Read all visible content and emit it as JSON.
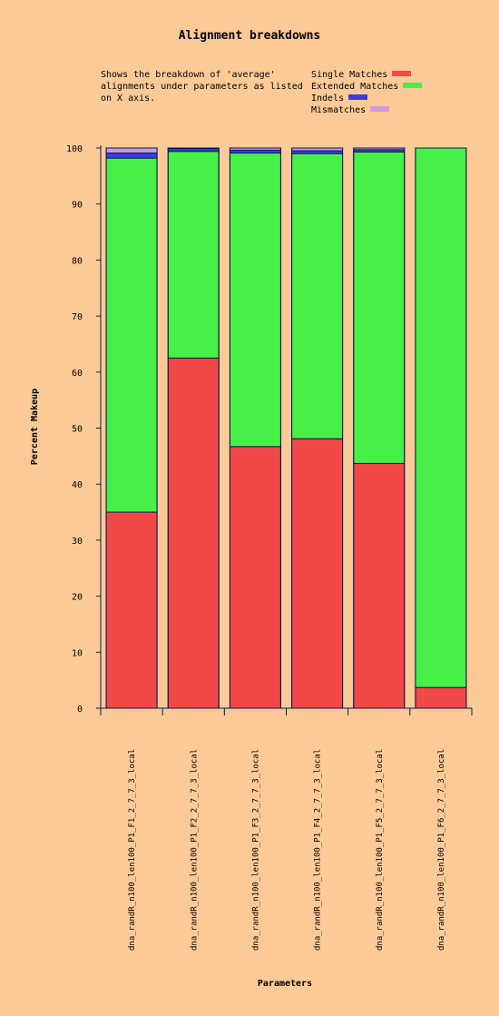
{
  "chart_data": {
    "type": "bar",
    "stacked": true,
    "title": "Alignment breakdowns",
    "description_lines": [
      "Shows the breakdown of 'average'",
      "alignments under parameters as listed",
      "on X axis."
    ],
    "xlabel": "Parameters",
    "ylabel": "Percent Makeup",
    "ylim": [
      0,
      100
    ],
    "yticks": [
      "0",
      "10",
      "20",
      "30",
      "40",
      "50",
      "60",
      "70",
      "80",
      "90",
      "100"
    ],
    "grid": false,
    "legend_position": "top-right",
    "categories": [
      "dna_randR_n100_len100_P1_F1_2_7_7_3_local",
      "dna_randR_n100_len100_P1_F2_2_7_7_3_local",
      "dna_randR_n100_len100_P1_F3_2_7_7_3_local",
      "dna_randR_n100_len100_P1_F4_2_7_7_3_local",
      "dna_randR_n100_len100_P1_F5_2_7_7_3_local",
      "dna_randR_n100_len100_P1_F6_2_7_7_3_local"
    ],
    "series": [
      {
        "name": "Single Matches",
        "color": "#f24848",
        "values": [
          35.0,
          62.5,
          46.7,
          48.1,
          43.7,
          3.7
        ]
      },
      {
        "name": "Extended Matches",
        "color": "#46f046",
        "values": [
          63.2,
          36.9,
          52.4,
          50.9,
          55.6,
          96.3
        ]
      },
      {
        "name": "Indels",
        "color": "#3c3ce6",
        "values": [
          0.9,
          0.5,
          0.5,
          0.5,
          0.4,
          0.0
        ]
      },
      {
        "name": "Mismatches",
        "color": "#cc99e0",
        "values": [
          0.9,
          0.1,
          0.4,
          0.5,
          0.3,
          0.0
        ]
      }
    ]
  }
}
